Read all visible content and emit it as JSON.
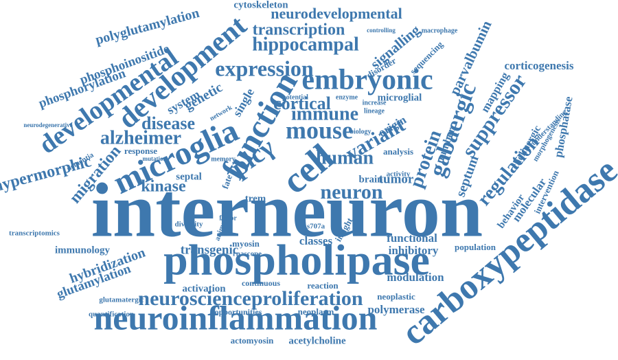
{
  "words": [
    "interneuron",
    "phospholipase",
    "carboxypeptidase",
    "neuroinflammation",
    "neuroscienceproliferation",
    "microglia",
    "function",
    "development",
    "developmental",
    "embryonic",
    "expression",
    "mouse",
    "immune",
    "cell",
    "plcγ",
    "neuron",
    "human",
    "variant",
    "cortical",
    "hippocampal",
    "transcription",
    "neurodevelopmental",
    "cytoskeleton",
    "polyglutamylation",
    "phosphorylation",
    "phosphoinositide",
    "alzheimer",
    "disease",
    "genetic",
    "system",
    "single",
    "hypermorphic",
    "migration",
    "kinase",
    "gabaergic",
    "protein",
    "suppressor",
    "regulation",
    "septum",
    "signalling",
    "parvalbumin",
    "corticogenesis",
    "mapping",
    "number",
    "sequencing",
    "phosphatase",
    "cholinergic",
    "molecular",
    "behavior",
    "transgenic",
    "immunology",
    "hybridization",
    "glutamylation",
    "transcriptomics",
    "response",
    "septal",
    "activation",
    "continuous",
    "reaction",
    "modulation",
    "inhibitory",
    "functional",
    "population",
    "neoplastic",
    "polymerase",
    "opportunities",
    "neoplasm",
    "actomyosin",
    "acetylcholine",
    "quantification",
    "glutamatergic",
    "classes",
    "tumor",
    "brain",
    "myosin",
    "rnascope",
    "diversity",
    "microglial",
    "origin",
    "analysis",
    "activity",
    "trem",
    "dementia",
    "neurodegenerative",
    "macrophage",
    "controlling",
    "insight",
    "s707a",
    "memory",
    "potential",
    "enzyme",
    "lineage",
    "increase",
    "disorder",
    "network",
    "fate",
    "mutation",
    "intervention",
    "understanding",
    "morphogenesis",
    "factor",
    "animal",
    "biology"
  ]
}
